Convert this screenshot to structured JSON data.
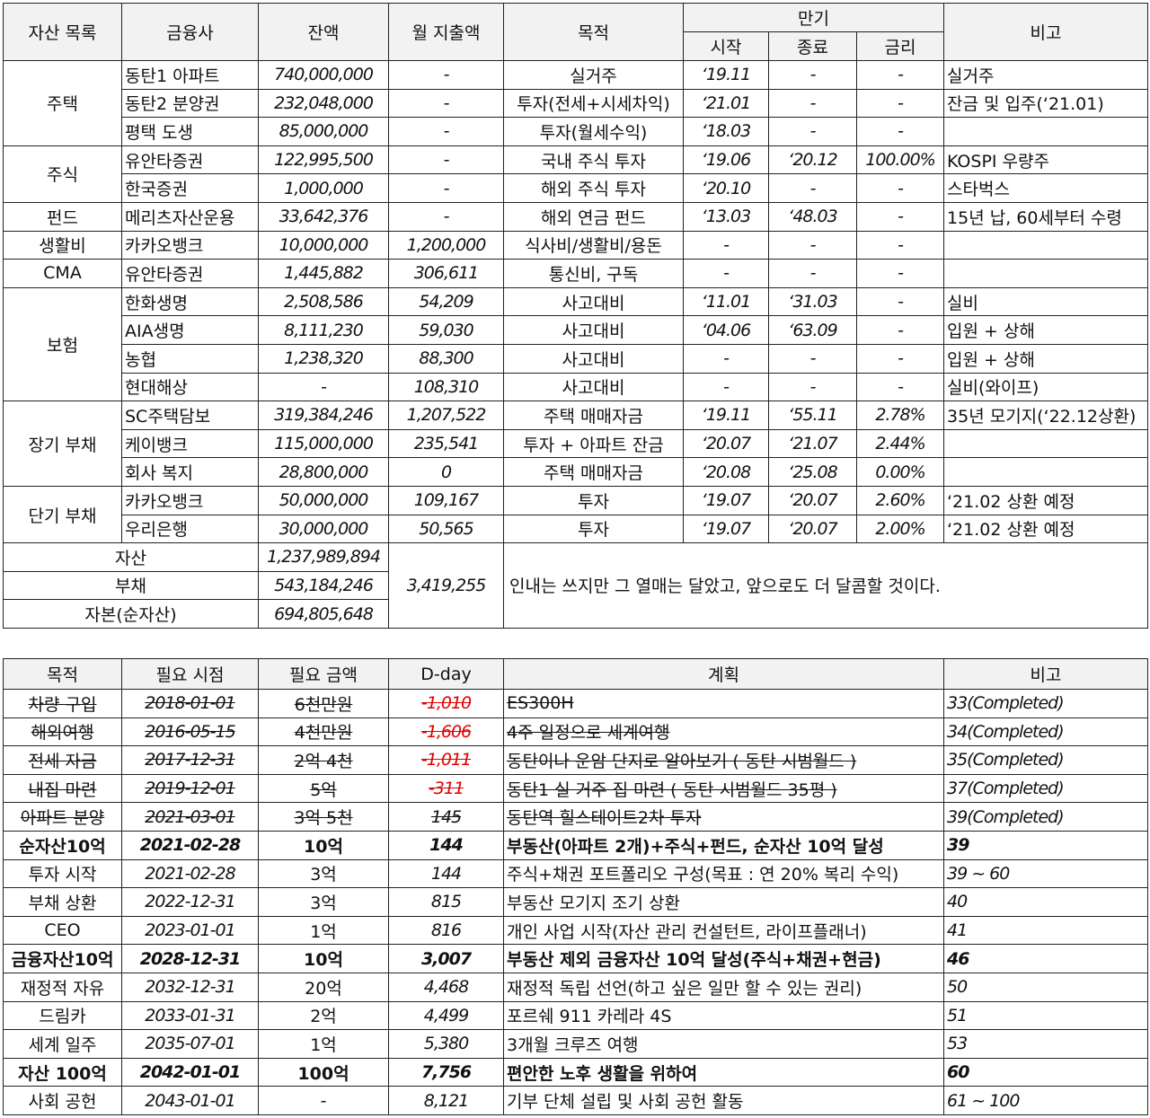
{
  "assets": {
    "headers": {
      "category": "자산 목록",
      "institution": "금융사",
      "balance": "잔액",
      "monthly": "월 지출액",
      "purpose": "목적",
      "maturity": "만기",
      "start": "시작",
      "end": "종료",
      "rate": "금리",
      "remarks": "비고"
    },
    "groups": [
      {
        "category": "주택",
        "rows": [
          [
            "동탄1 아파트",
            "740,000,000",
            "-",
            "실거주",
            "‘19.11",
            "-",
            "-",
            "실거주"
          ],
          [
            "동탄2 분양권",
            "232,048,000",
            "-",
            "투자(전세+시세차익)",
            "‘21.01",
            "-",
            "-",
            "잔금 및 입주(‘21.01)"
          ],
          [
            "평택 도생",
            "85,000,000",
            "-",
            "투자(월세수익)",
            "‘18.03",
            "-",
            "-",
            ""
          ]
        ]
      },
      {
        "category": "주식",
        "rows": [
          [
            "유안타증권",
            "122,995,500",
            "-",
            "국내 주식 투자",
            "‘19.06",
            "‘20.12",
            "100.00%",
            "KOSPI 우량주"
          ],
          [
            "한국증권",
            "1,000,000",
            "-",
            "해외 주식 투자",
            "‘20.10",
            "-",
            "-",
            "스타벅스"
          ]
        ]
      },
      {
        "category": "펀드",
        "rows": [
          [
            "메리츠자산운용",
            "33,642,376",
            "-",
            "해외 연금 펀드",
            "‘13.03",
            "‘48.03",
            "-",
            "15년 납, 60세부터 수령"
          ]
        ]
      },
      {
        "category": "생활비",
        "rows": [
          [
            "카카오뱅크",
            "10,000,000",
            "1,200,000",
            "식사비/생활비/용돈",
            "-",
            "-",
            "-",
            ""
          ]
        ]
      },
      {
        "category": "CMA",
        "rows": [
          [
            "유안타증권",
            "1,445,882",
            "306,611",
            "통신비, 구독",
            "-",
            "-",
            "-",
            ""
          ]
        ]
      },
      {
        "category": "보험",
        "rows": [
          [
            "한화생명",
            "2,508,586",
            "54,209",
            "사고대비",
            "‘11.01",
            "‘31.03",
            "-",
            "실비"
          ],
          [
            "AIA생명",
            "8,111,230",
            "59,030",
            "사고대비",
            "‘04.06",
            "‘63.09",
            "-",
            "입원 + 상해"
          ],
          [
            "농협",
            "1,238,320",
            "88,300",
            "사고대비",
            "-",
            "-",
            "-",
            "입원 + 상해"
          ],
          [
            "현대해상",
            "-",
            "108,310",
            "사고대비",
            "-",
            "-",
            "-",
            "실비(와이프)"
          ]
        ]
      },
      {
        "category": "장기 부채",
        "rows": [
          [
            "SC주택담보",
            "319,384,246",
            "1,207,522",
            "주택 매매자금",
            "‘19.11",
            "‘55.11",
            "2.78%",
            "35년 모기지(‘22.12상환)"
          ],
          [
            "케이뱅크",
            "115,000,000",
            "235,541",
            "투자 + 아파트 잔금",
            "‘20.07",
            "‘21.07",
            "2.44%",
            ""
          ],
          [
            "회사 복지",
            "28,800,000",
            "0",
            "주택 매매자금",
            "‘20.08",
            "‘25.08",
            "0.00%",
            ""
          ]
        ]
      },
      {
        "category": "단기 부채",
        "rows": [
          [
            "카카오뱅크",
            "50,000,000",
            "109,167",
            "투자",
            "‘19.07",
            "‘20.07",
            "2.60%",
            "‘21.02 상환 예정"
          ],
          [
            "우리은행",
            "30,000,000",
            "50,565",
            "투자",
            "‘19.07",
            "‘20.07",
            "2.00%",
            "‘21.02 상환 예정"
          ]
        ]
      }
    ],
    "summary": {
      "rows": [
        {
          "label": "자산",
          "value": "1,237,989,894"
        },
        {
          "label": "부채",
          "value": "543,184,246"
        },
        {
          "label": "자본(순자산)",
          "value": "694,805,648"
        }
      ],
      "monthly_total": "3,419,255",
      "note": "인내는 쓰지만 그 열매는 달았고, 앞으로도 더 달콤할 것이다."
    }
  },
  "goals": {
    "headers": [
      "목적",
      "필요 시점",
      "필요 금액",
      "D-day",
      "계획",
      "비고"
    ],
    "rows": [
      {
        "cells": [
          "차량 구입",
          "2018-01-01",
          "6천만원",
          "-1,010",
          "ES300H",
          "33(Completed)"
        ],
        "done": true,
        "dday_red": true,
        "bold": false
      },
      {
        "cells": [
          "해외여행",
          "2016-05-15",
          "4천만원",
          "-1,606",
          "4주 일정으로 세계여행",
          "34(Completed)"
        ],
        "done": true,
        "dday_red": true,
        "bold": false
      },
      {
        "cells": [
          "전세 자금",
          "2017-12-31",
          "2억 4천",
          "-1,011",
          "동탄이나 운암 단지로 알아보기 ( 동탄 시범월드 )",
          "35(Completed)"
        ],
        "done": true,
        "dday_red": true,
        "bold": false
      },
      {
        "cells": [
          "내집 마련",
          "2019-12-01",
          "5억",
          "-311",
          "동탄1 실 거주 집 마련 ( 동탄 시범월드 35평 )",
          "37(Completed)"
        ],
        "done": true,
        "dday_red": true,
        "bold": false
      },
      {
        "cells": [
          "아파트 분양",
          "2021-03-01",
          "3억 5천",
          "145",
          "동탄역 힐스테이트2차 투자",
          "39(Completed)"
        ],
        "done": true,
        "dday_red": false,
        "bold": false
      },
      {
        "cells": [
          "순자산10억",
          "2021-02-28",
          "10억",
          "144",
          "부동산(아파트 2개)+주식+펀드, 순자산 10억 달성",
          "39"
        ],
        "done": false,
        "dday_red": false,
        "bold": true
      },
      {
        "cells": [
          "투자 시작",
          "2021-02-28",
          "3억",
          "144",
          "주식+채권 포트폴리오 구성(목표 : 연 20% 복리 수익)",
          "39 ~ 60"
        ],
        "done": false,
        "dday_red": false,
        "bold": false
      },
      {
        "cells": [
          "부채 상환",
          "2022-12-31",
          "3억",
          "815",
          "부동산 모기지 조기 상환",
          "40"
        ],
        "done": false,
        "dday_red": false,
        "bold": false
      },
      {
        "cells": [
          "CEO",
          "2023-01-01",
          "1억",
          "816",
          "개인 사업 시작(자산 관리 컨설턴트, 라이프플래너)",
          "41"
        ],
        "done": false,
        "dday_red": false,
        "bold": false
      },
      {
        "cells": [
          "금융자산10억",
          "2028-12-31",
          "10억",
          "3,007",
          "부동산 제외 금융자산 10억 달성(주식+채권+현금)",
          "46"
        ],
        "done": false,
        "dday_red": false,
        "bold": true
      },
      {
        "cells": [
          "재정적 자유",
          "2032-12-31",
          "20억",
          "4,468",
          "재정적 독립 선언(하고 싶은 일만 할 수 있는 권리)",
          "50"
        ],
        "done": false,
        "dday_red": false,
        "bold": false
      },
      {
        "cells": [
          "드림카",
          "2033-01-31",
          "2억",
          "4,499",
          "포르쉐 911 카레라 4S",
          "51"
        ],
        "done": false,
        "dday_red": false,
        "bold": false
      },
      {
        "cells": [
          "세계 일주",
          "2035-07-01",
          "1억",
          "5,380",
          "3개월 크루즈 여행",
          "53"
        ],
        "done": false,
        "dday_red": false,
        "bold": false
      },
      {
        "cells": [
          "자산 100억",
          "2042-01-01",
          "100억",
          "7,756",
          "편안한 노후 생활을 위하여",
          "60"
        ],
        "done": false,
        "dday_red": false,
        "bold": true
      },
      {
        "cells": [
          "사회 공헌",
          "2043-01-01",
          "-",
          "8,121",
          "기부 단체 설립 및 사회 공헌 활동",
          "61 ~ 100"
        ],
        "done": false,
        "dday_red": false,
        "bold": false
      }
    ]
  },
  "colors": {
    "header_bg": "#f2f2f2",
    "negative_dday": "#e00000",
    "border": "#222222"
  }
}
